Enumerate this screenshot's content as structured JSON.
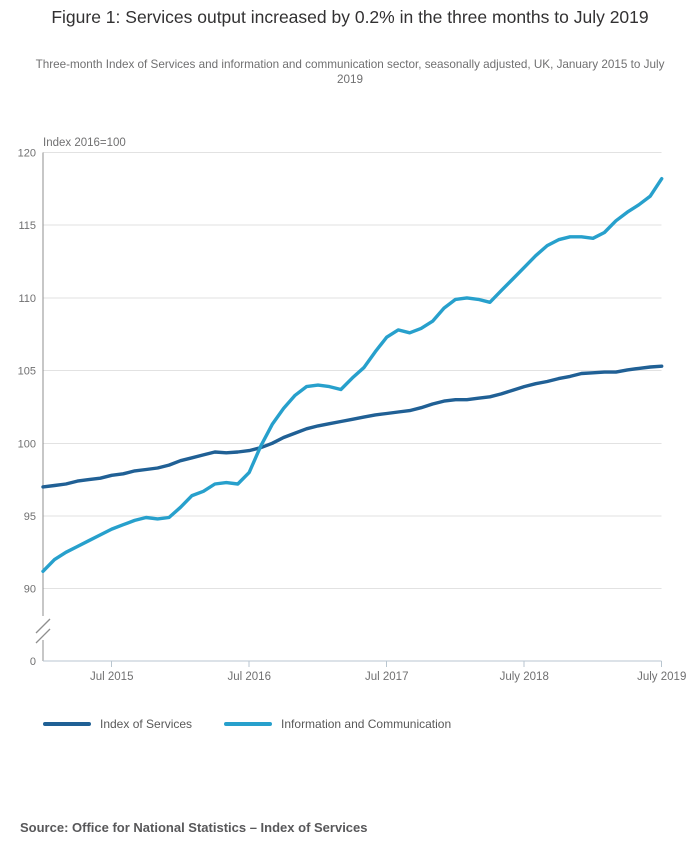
{
  "figure": {
    "title": "Figure 1: Services output increased by 0.2% in the three months to July 2019",
    "subtitle": "Three-month Index of Services and information and communication sector, seasonally adjusted, UK, January 2015 to July 2019",
    "source": "Source: Office for National Statistics – Index of Services"
  },
  "chart_data": {
    "type": "line",
    "title": "Figure 1: Services output increased by 0.2% in the three months to July 2019",
    "unit_label": "Index 2016=100",
    "x_start_label": "January 2015",
    "x_end_label": "July 2019",
    "x_tick_labels": [
      "Jul 2015",
      "Jul 2016",
      "Jul 2017",
      "July 2018",
      "July 2019"
    ],
    "x_tick_month_index": [
      6,
      18,
      30,
      42,
      54
    ],
    "y_ticks": [
      90,
      95,
      100,
      105,
      110,
      115,
      120
    ],
    "y_origin_label": "0",
    "y_axis_break": true,
    "ylim": [
      90,
      120
    ],
    "grid": "horizontal",
    "legend_position": "bottom",
    "months_per_point": 1,
    "series": [
      {
        "name": "Index of Services",
        "color": "#206095",
        "values": [
          97.0,
          97.1,
          97.2,
          97.4,
          97.5,
          97.6,
          97.8,
          97.9,
          98.1,
          98.2,
          98.3,
          98.5,
          98.8,
          99.0,
          99.2,
          99.4,
          99.35,
          99.4,
          99.5,
          99.7,
          100.0,
          100.4,
          100.7,
          101.0,
          101.2,
          101.35,
          101.5,
          101.65,
          101.8,
          101.95,
          102.05,
          102.15,
          102.25,
          102.45,
          102.7,
          102.9,
          103.0,
          103.0,
          103.1,
          103.2,
          103.4,
          103.65,
          103.9,
          104.1,
          104.25,
          104.45,
          104.6,
          104.8,
          104.85,
          104.9,
          104.9,
          105.05,
          105.15,
          105.25,
          105.3
        ]
      },
      {
        "name": "Information and Communication",
        "color": "#27A0CC",
        "values": [
          91.2,
          92.0,
          92.5,
          92.9,
          93.3,
          93.7,
          94.1,
          94.4,
          94.7,
          94.9,
          94.8,
          94.9,
          95.6,
          96.4,
          96.7,
          97.2,
          97.3,
          97.2,
          98.0,
          99.8,
          101.3,
          102.4,
          103.3,
          103.9,
          104.0,
          103.9,
          103.7,
          104.5,
          105.2,
          106.3,
          107.3,
          107.8,
          107.6,
          107.9,
          108.4,
          109.3,
          109.9,
          110.0,
          109.9,
          109.7,
          110.5,
          111.3,
          112.1,
          112.9,
          113.6,
          114.0,
          114.2,
          114.2,
          114.1,
          114.5,
          115.3,
          115.9,
          116.4,
          117.0,
          118.2
        ]
      }
    ],
    "colors": {
      "grid": "#e2e2e2",
      "y_axis": "#8f8f8f",
      "x_axis": "#b9c6d0",
      "tick_text": "#707071"
    }
  }
}
